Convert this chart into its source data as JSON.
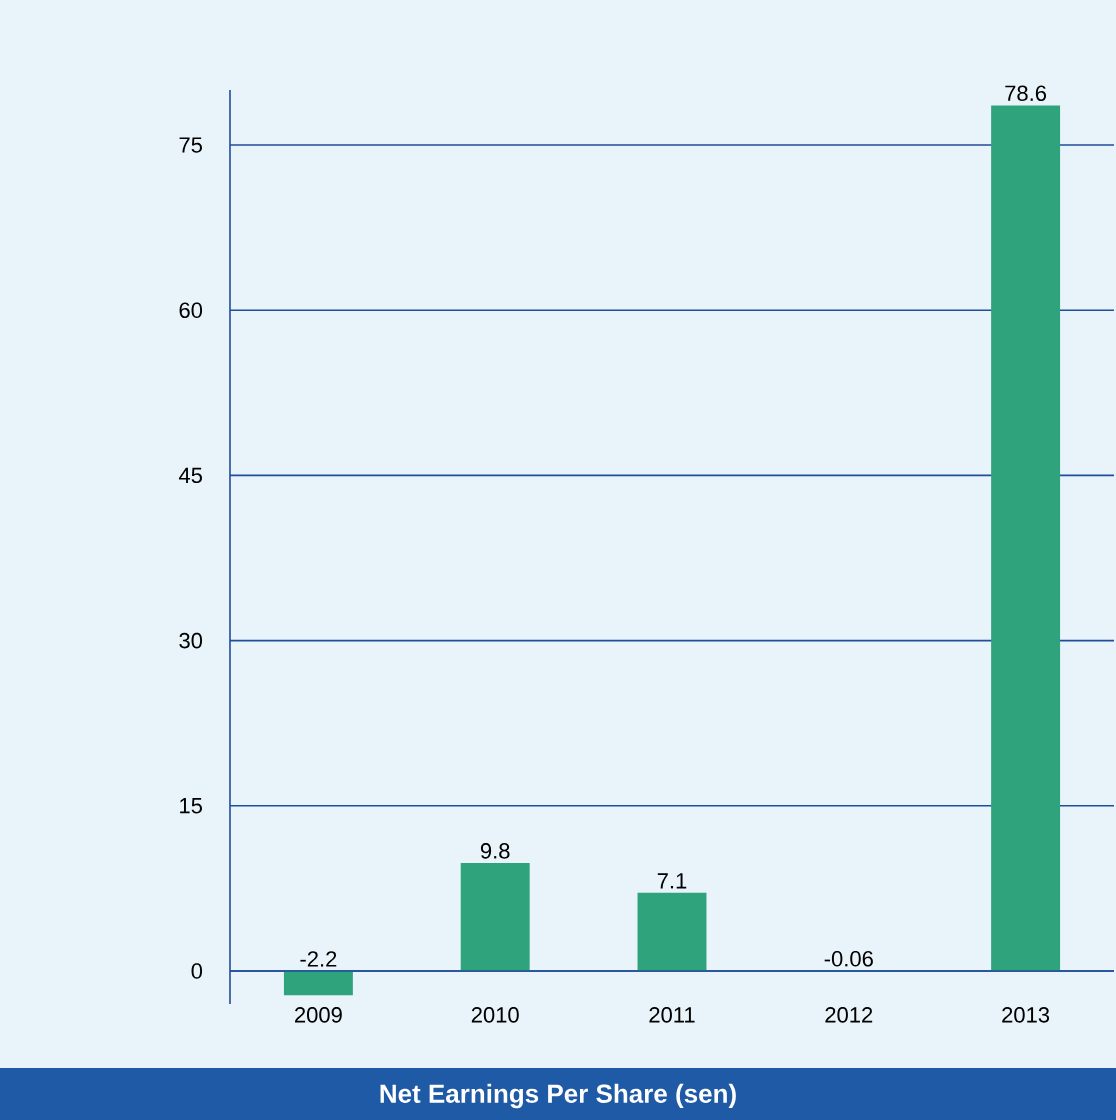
{
  "chart_data": {
    "type": "bar",
    "title": "Net Earnings Per Share (sen)",
    "categories": [
      "2009",
      "2010",
      "2011",
      "2012",
      "2013"
    ],
    "values": [
      -2.2,
      9.8,
      7.1,
      -0.06,
      78.6
    ],
    "color": "#2fa47c",
    "ylim": [
      -3,
      80
    ],
    "yticks": [
      0,
      15,
      30,
      45,
      60,
      75
    ],
    "grid": "y",
    "data_labels": true
  }
}
